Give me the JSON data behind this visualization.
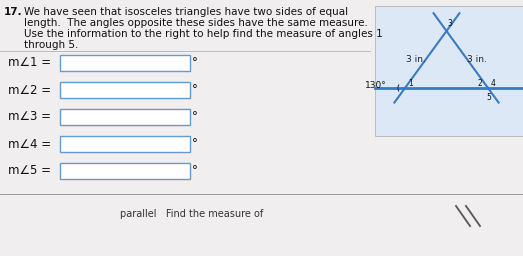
{
  "title_number": "17.",
  "text_line1": "We have seen that isosceles triangles have two sides of equal",
  "text_line2": "length.  The angles opposite these sides have the same measure.",
  "text_line3": "Use the information to the right to help find the measure of angles 1",
  "text_line4": "through 5.",
  "angle_labels": [
    "m∠1 =",
    "m∠2 =",
    "m∠3 =",
    "m∠4 =",
    "m∠5 ="
  ],
  "degree_symbol": "°",
  "bottom_text": "parallel   Find the measure of",
  "bg_color": "#f0eeee",
  "diagram_bg": "#dce8f5",
  "diagram_line_color": "#3a7bbf",
  "text_color": "#111111",
  "label_130": "130°",
  "label_3in_left": "3 in.",
  "label_3in_right": "3 in.",
  "angle_numbers": [
    "1",
    "2",
    "3",
    "4",
    "5"
  ],
  "font_size_text": 7.5,
  "font_size_angle": 8.5,
  "input_box_edgecolor": "#6699cc",
  "separator_color": "#bbbbbb"
}
